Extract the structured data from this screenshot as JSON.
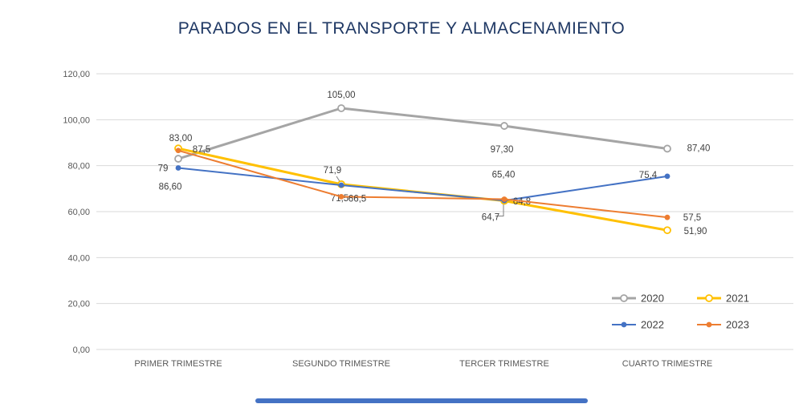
{
  "colors": {
    "title": "#1F3864",
    "axis_text": "#595959",
    "label_text": "#404040",
    "gridline": "#D9D9D9",
    "leader_line": "#7F7F7F",
    "bottom_bar": "#4472C4"
  },
  "chart_data": {
    "type": "line",
    "title": "PARADOS EN EL TRANSPORTE Y ALMACENAMIENTO",
    "categories": [
      "PRIMER TRIMESTRE",
      "SEGUNDO TRIMESTRE",
      "TERCER TRIMESTRE",
      "CUARTO TRIMESTRE"
    ],
    "xlabel": "",
    "ylabel": "",
    "ylim": [
      0,
      120
    ],
    "grid": "horizontal",
    "legend_position": "inside-bottom-right",
    "legend_entries": [
      "2020",
      "2021",
      "2022",
      "2023"
    ],
    "y_axis": {
      "ticks": [
        {
          "value": 0,
          "label": "0,00"
        },
        {
          "value": 20,
          "label": "20,00"
        },
        {
          "value": 40,
          "label": "40,00"
        },
        {
          "value": 60,
          "label": "60,00"
        },
        {
          "value": 80,
          "label": "80,00"
        },
        {
          "value": 100,
          "label": "100,00"
        },
        {
          "value": 120,
          "label": "120,00"
        }
      ]
    },
    "series": [
      {
        "name": "2020",
        "color": "#A5A5A5",
        "marker": "open",
        "line_width": 3,
        "values": [
          83.0,
          105.0,
          97.3,
          87.4
        ],
        "labels": [
          "83,00",
          "105,00",
          "97,30",
          "87,40"
        ],
        "label_offsets": [
          [
            3,
            -26
          ],
          [
            0,
            -17
          ],
          [
            -3,
            29
          ],
          [
            39,
            -1
          ]
        ],
        "leaders": [
          null,
          null,
          null,
          null
        ]
      },
      {
        "name": "2021",
        "color": "#FFC000",
        "marker": "open",
        "line_width": 3,
        "values": [
          87.5,
          71.9,
          64.7,
          51.9
        ],
        "labels": [
          "87,5",
          "71,9",
          "64,7",
          "51,90"
        ],
        "label_offsets": [
          [
            29,
            1
          ],
          [
            -11,
            -18
          ],
          [
            -17,
            20
          ],
          [
            35,
            1
          ]
        ],
        "leaders": [
          null,
          [
            [
              -6,
              -10
            ],
            [
              -1,
              -2
            ]
          ],
          [
            [
              -11,
              19
            ],
            [
              -1,
              19
            ],
            [
              -1,
              4
            ]
          ],
          null
        ]
      },
      {
        "name": "2022",
        "color": "#4472C4",
        "marker": "filled",
        "line_width": 2,
        "values": [
          79.0,
          71.5,
          64.8,
          75.4
        ],
        "labels": [
          "79",
          "71,5",
          "64,8",
          "75,4"
        ],
        "label_offsets": [
          [
            -19,
            0
          ],
          [
            -2,
            16
          ],
          [
            22,
            1
          ],
          [
            -24,
            -2
          ]
        ],
        "leaders": [
          null,
          null,
          null,
          null
        ]
      },
      {
        "name": "2023",
        "color": "#ED7D31",
        "marker": "filled",
        "line_width": 2,
        "values": [
          86.6,
          66.5,
          65.4,
          57.5
        ],
        "labels": [
          "86,60",
          "66,5",
          "65,40",
          "57,5"
        ],
        "label_offsets": [
          [
            -10,
            45
          ],
          [
            20,
            2
          ],
          [
            -1,
            -31
          ],
          [
            31,
            0
          ]
        ],
        "leaders": [
          null,
          null,
          null,
          null
        ]
      }
    ]
  }
}
